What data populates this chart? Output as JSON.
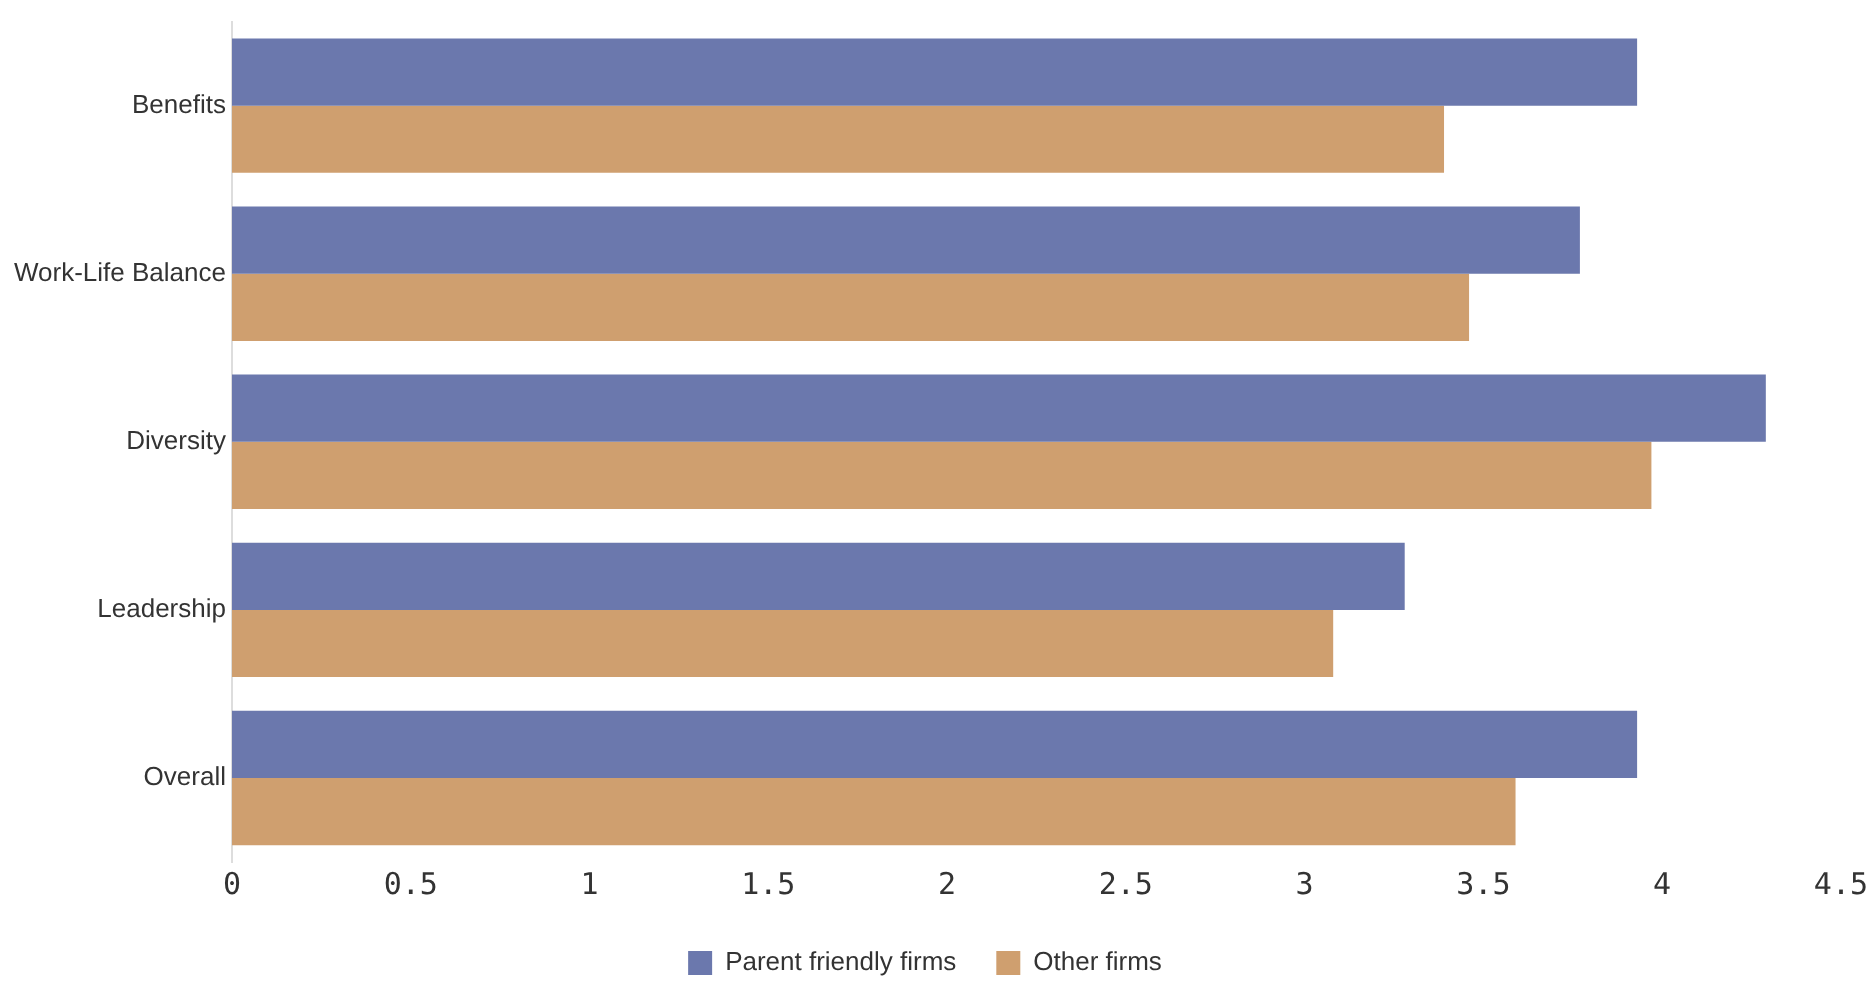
{
  "chart_data": {
    "type": "bar",
    "orientation": "horizontal",
    "categories": [
      "Benefits",
      "Work-Life Balance",
      "Diversity",
      "Leadership",
      "Overall"
    ],
    "series": [
      {
        "name": "Parent friendly firms",
        "color": "#6b78ad",
        "values": [
          3.93,
          3.77,
          4.29,
          3.28,
          3.93
        ]
      },
      {
        "name": "Other firms",
        "color": "#cf9f6f",
        "values": [
          3.39,
          3.46,
          3.97,
          3.08,
          3.59
        ]
      }
    ],
    "xlim": [
      0,
      4.5
    ],
    "xticks": [
      0,
      0.5,
      1,
      1.5,
      2,
      2.5,
      3,
      3.5,
      4,
      4.5
    ],
    "grid": false,
    "legend": "bottom"
  }
}
